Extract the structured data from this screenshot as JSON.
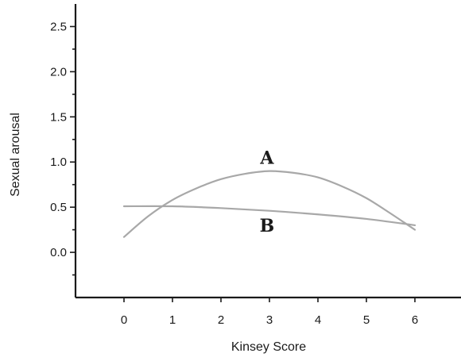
{
  "chart_data": {
    "type": "line",
    "xlabel": "Kinsey Score",
    "ylabel": "Sexual arousal",
    "xlim": [
      -1,
      7
    ],
    "ylim": [
      -0.5,
      2.75
    ],
    "xticks": [
      0,
      1,
      2,
      3,
      4,
      5,
      6
    ],
    "xtick_labels": [
      "0",
      "1",
      "2",
      "3",
      "4",
      "5",
      "6"
    ],
    "yticks": [
      0.0,
      0.5,
      1.0,
      1.5,
      2.0,
      2.5
    ],
    "ytick_labels": [
      "0.0",
      "0.5",
      "1.0",
      "1.5",
      "2.0",
      "2.5"
    ],
    "y_minor_ticks": [
      -0.25,
      0.25,
      0.75,
      1.25,
      1.75,
      2.25
    ],
    "grid": false,
    "legend": "none",
    "series_color": "#a8a8a8",
    "series": [
      {
        "name": "A",
        "x": [
          0,
          0.5,
          1,
          1.5,
          2,
          2.5,
          3,
          3.5,
          4,
          4.5,
          5,
          5.5,
          6
        ],
        "y": [
          0.17,
          0.4,
          0.58,
          0.71,
          0.81,
          0.87,
          0.9,
          0.88,
          0.83,
          0.73,
          0.6,
          0.43,
          0.25
        ]
      },
      {
        "name": "B",
        "x": [
          0,
          1,
          2,
          3,
          4,
          5,
          6
        ],
        "y": [
          0.51,
          0.51,
          0.49,
          0.46,
          0.42,
          0.37,
          0.3
        ]
      }
    ],
    "annotations": [
      {
        "text": "A",
        "x": 2.95,
        "y": 1.05
      },
      {
        "text": "B",
        "x": 2.95,
        "y": 0.3
      }
    ]
  }
}
